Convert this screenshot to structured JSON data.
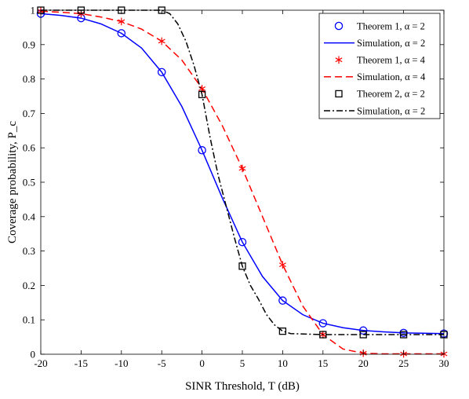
{
  "chart_data": {
    "type": "line",
    "xlabel": "SINR Threshold, T (dB)",
    "ylabel": "Coverage probability, P_c",
    "xlim": [
      -20,
      30
    ],
    "ylim": [
      0,
      1
    ],
    "xticks": [
      -20,
      -15,
      -10,
      -5,
      0,
      5,
      10,
      15,
      20,
      25,
      30
    ],
    "yticks": [
      0,
      0.1,
      0.2,
      0.3,
      0.4,
      0.5,
      0.6,
      0.7,
      0.8,
      0.9,
      1
    ],
    "xtick_labels": [
      "-20",
      "-15",
      "-10",
      "-5",
      "0",
      "5",
      "10",
      "15",
      "20",
      "25",
      "30"
    ],
    "ytick_labels": [
      "0",
      "0.1",
      "0.2",
      "0.3",
      "0.4",
      "0.5",
      "0.6",
      "0.7",
      "0.8",
      "0.9",
      "1"
    ],
    "grid": false,
    "legend_position": "top-right",
    "series": [
      {
        "name": "Theorem 1, α = 2",
        "style": "markers",
        "marker": "circle",
        "color": "#0000ff",
        "x": [
          -20,
          -15,
          -10,
          -5,
          0,
          5,
          10,
          15,
          20,
          25,
          30
        ],
        "y": [
          0.99,
          0.977,
          0.933,
          0.82,
          0.593,
          0.326,
          0.156,
          0.09,
          0.069,
          0.062,
          0.06
        ]
      },
      {
        "name": "Simulation, α = 2",
        "style": "line",
        "dash": "solid",
        "color": "#0000ff",
        "x": [
          -20,
          -17.5,
          -15,
          -12.5,
          -10,
          -7.5,
          -5,
          -2.5,
          0,
          2.5,
          5,
          7.5,
          10,
          12.5,
          15,
          17.5,
          20,
          22.5,
          25,
          27.5,
          30
        ],
        "y": [
          0.99,
          0.985,
          0.977,
          0.96,
          0.933,
          0.89,
          0.82,
          0.72,
          0.593,
          0.455,
          0.326,
          0.226,
          0.156,
          0.115,
          0.09,
          0.077,
          0.069,
          0.065,
          0.062,
          0.061,
          0.06
        ]
      },
      {
        "name": "Theorem 1, α = 4",
        "style": "markers",
        "marker": "asterisk",
        "color": "#ff0000",
        "x": [
          -20,
          -15,
          -10,
          -5,
          0,
          5,
          10,
          15,
          20,
          25,
          30
        ],
        "y": [
          0.997,
          0.99,
          0.967,
          0.91,
          0.772,
          0.54,
          0.26,
          0.057,
          0.003,
          0.001,
          0.001
        ]
      },
      {
        "name": "Simulation, α = 4",
        "style": "line",
        "dash": "dashed",
        "color": "#ff0000",
        "x": [
          -20,
          -17.5,
          -15,
          -12.5,
          -10,
          -7.5,
          -5,
          -2.5,
          0,
          2.5,
          5,
          7.5,
          10,
          12.5,
          15,
          17.5,
          20,
          22.5,
          25,
          27.5,
          30
        ],
        "y": [
          0.997,
          0.994,
          0.99,
          0.98,
          0.967,
          0.945,
          0.91,
          0.855,
          0.772,
          0.665,
          0.54,
          0.4,
          0.26,
          0.14,
          0.057,
          0.015,
          0.003,
          0.001,
          0.001,
          0.001,
          0.001
        ]
      },
      {
        "name": "Theorem 2, α = 2",
        "style": "markers",
        "marker": "square",
        "color": "#000000",
        "x": [
          -20,
          -15,
          -10,
          -5,
          0,
          5,
          10,
          15,
          20,
          25,
          30
        ],
        "y": [
          1,
          1,
          1,
          1,
          0.755,
          0.256,
          0.067,
          0.057,
          0.057,
          0.057,
          0.057
        ]
      },
      {
        "name": "Simulation, α = 2",
        "style": "line",
        "dash": "dashdot",
        "color": "#000000",
        "x": [
          -20,
          -15,
          -10,
          -5,
          -4,
          -3,
          -2,
          -1,
          0,
          1,
          2,
          3,
          4,
          5,
          6,
          7,
          8,
          9,
          10,
          11,
          15,
          20,
          25,
          30
        ],
        "y": [
          1,
          1,
          1,
          1,
          0.99,
          0.96,
          0.91,
          0.84,
          0.755,
          0.63,
          0.52,
          0.43,
          0.34,
          0.256,
          0.2,
          0.16,
          0.115,
          0.085,
          0.067,
          0.06,
          0.057,
          0.057,
          0.057,
          0.057
        ]
      }
    ]
  }
}
